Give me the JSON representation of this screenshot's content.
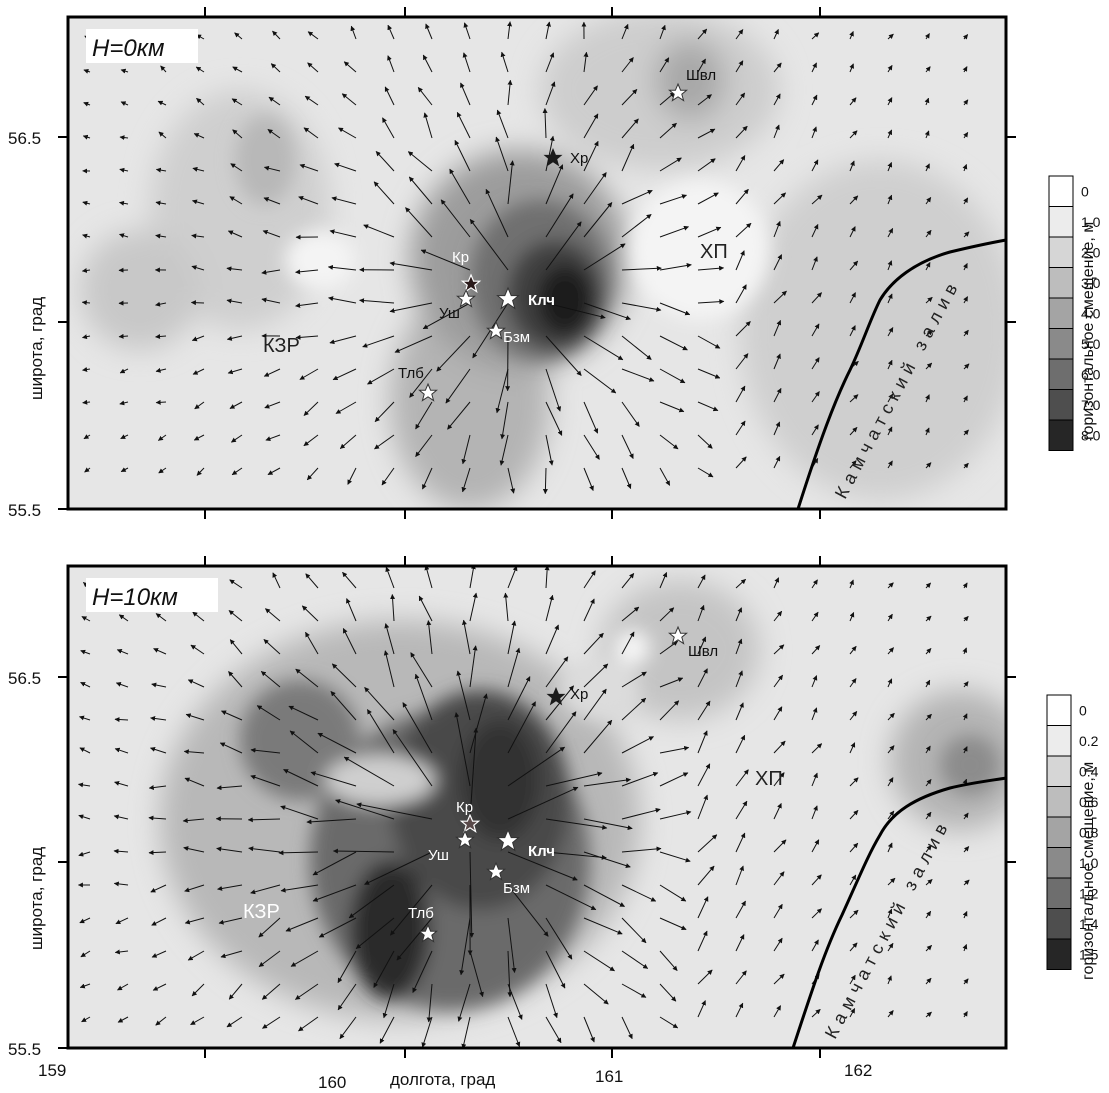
{
  "panels": [
    {
      "depth_label": "H=0км",
      "colorbar_labels": [
        "0",
        "1.0",
        "2.0",
        "3.0",
        "4.0",
        "5.0",
        "6.0",
        "7.0",
        "8.0"
      ],
      "colorbar_title": "горизонтальное смещение, м",
      "ylabel": "широта, град",
      "y_ticks": [
        "56.5",
        "55.5"
      ],
      "regions": {
        "kzr": "КЗР",
        "khp": "ХП"
      },
      "bay": "Камчатский залив",
      "stations": {
        "shvl": "Швл",
        "khr": "Хр",
        "kr": "Кр",
        "ush": "Уш",
        "klch": "Клч",
        "bzm": "Бзм",
        "tlb": "Тлб"
      }
    },
    {
      "depth_label": "H=10км",
      "colorbar_labels": [
        "0",
        "0.2",
        "0.4",
        "0.6",
        "0.8",
        "1.0",
        "1.2",
        "1.4",
        "1.5"
      ],
      "colorbar_title": "горизонтальное смещение, м",
      "ylabel": "широта, град",
      "y_ticks": [
        "56.5",
        "55.5"
      ],
      "regions": {
        "kzr": "КЗР",
        "khp": "ХП"
      },
      "bay": "Камчатский залив",
      "stations": {
        "shvl": "Швл",
        "khr": "Хр",
        "kr": "Кр",
        "ush": "Уш",
        "klch": "Клч",
        "bzm": "Бзм",
        "tlb": "Тлб"
      }
    }
  ],
  "x_axis": {
    "label": "долгота, град",
    "ticks": [
      "159",
      "160",
      "161",
      "162"
    ]
  },
  "colors": {
    "background": "#e4e4e4",
    "star_main": "#ffffff",
    "star_dark": "#222222"
  }
}
